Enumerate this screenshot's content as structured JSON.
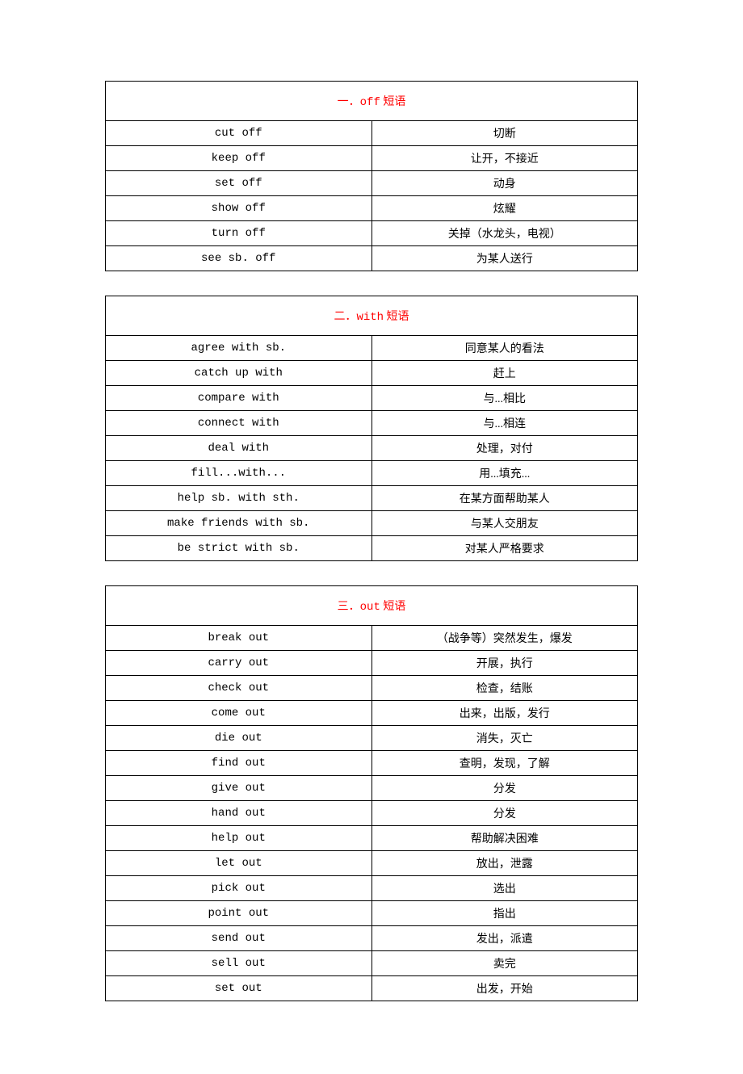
{
  "tables": [
    {
      "header_prefix": "一．",
      "header_label": "off",
      "header_suffix": "短语",
      "rows": [
        {
          "en": "cut off",
          "zh": "切断"
        },
        {
          "en": "keep off",
          "zh": "让开，不接近"
        },
        {
          "en": "set off",
          "zh": "动身"
        },
        {
          "en": "show off",
          "zh": "炫耀"
        },
        {
          "en": "turn off",
          "zh": "关掉（水龙头，电视）"
        },
        {
          "en": "see sb. off",
          "zh": "为某人送行"
        }
      ]
    },
    {
      "header_prefix": "二．",
      "header_label": "with",
      "header_suffix": "短语",
      "rows": [
        {
          "en": "agree with sb.",
          "zh": "同意某人的看法"
        },
        {
          "en": "catch up with",
          "zh": "赶上"
        },
        {
          "en": "compare with",
          "zh": "与...相比"
        },
        {
          "en": "connect with",
          "zh": "与...相连"
        },
        {
          "en": "deal with",
          "zh": "处理，对付"
        },
        {
          "en": "fill...with...",
          "zh": "用...填充..."
        },
        {
          "en": "help sb. with sth.",
          "zh": "在某方面帮助某人"
        },
        {
          "en": "make friends with sb.",
          "zh": "与某人交朋友"
        },
        {
          "en": "be strict with sb.",
          "zh": "对某人严格要求"
        }
      ]
    },
    {
      "header_prefix": "三．",
      "header_label": "out",
      "header_suffix": "短语",
      "rows": [
        {
          "en": "break out",
          "zh": "（战争等）突然发生，爆发"
        },
        {
          "en": "carry out",
          "zh": "开展，执行"
        },
        {
          "en": "check out",
          "zh": "检查，结账"
        },
        {
          "en": "come out",
          "zh": "出来，出版，发行"
        },
        {
          "en": "die out",
          "zh": "消失，灭亡"
        },
        {
          "en": "find out",
          "zh": "查明，发现，了解"
        },
        {
          "en": "give out",
          "zh": "分发"
        },
        {
          "en": "hand out",
          "zh": "分发"
        },
        {
          "en": "help out",
          "zh": "帮助解决困难"
        },
        {
          "en": "let out",
          "zh": "放出，泄露"
        },
        {
          "en": "pick out",
          "zh": "选出"
        },
        {
          "en": "point out",
          "zh": "指出"
        },
        {
          "en": "send out",
          "zh": "发出，派遣"
        },
        {
          "en": "sell out",
          "zh": "卖完"
        },
        {
          "en": "set out",
          "zh": "出发，开始"
        }
      ]
    }
  ]
}
